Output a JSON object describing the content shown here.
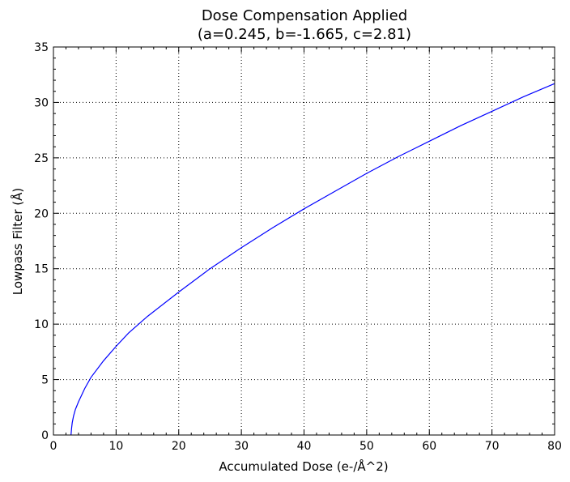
{
  "chart_data": {
    "type": "line",
    "title": "Dose Compensation Applied",
    "subtitle": "(a=0.245, b=-1.665, c=2.81)",
    "xlabel": "Accumulated Dose (e-/Å^2)",
    "ylabel": "Lowpass Filter (Å)",
    "xlim": [
      0,
      80
    ],
    "ylim": [
      0,
      35
    ],
    "xticks": [
      0,
      10,
      20,
      30,
      40,
      50,
      60,
      70,
      80
    ],
    "yticks": [
      0,
      5,
      10,
      15,
      20,
      25,
      30,
      35
    ],
    "grid": true,
    "series": [
      {
        "color": "#0000ff",
        "x": [
          2.8,
          2.9,
          3.0,
          3.2,
          3.5,
          4.0,
          5.0,
          6.0,
          8.0,
          10.0,
          12.0,
          15.0,
          20.0,
          25.0,
          30.0,
          35.0,
          40.0,
          45.0,
          50.0,
          55.0,
          60.0,
          65.0,
          70.0,
          75.0,
          80.0
        ],
        "y": [
          0.0,
          0.6,
          1.1,
          1.7,
          2.3,
          3.0,
          4.2,
          5.2,
          6.7,
          8.0,
          9.2,
          10.7,
          12.9,
          15.0,
          16.9,
          18.7,
          20.4,
          22.0,
          23.6,
          25.1,
          26.5,
          27.9,
          29.2,
          30.5,
          31.7
        ]
      }
    ]
  }
}
